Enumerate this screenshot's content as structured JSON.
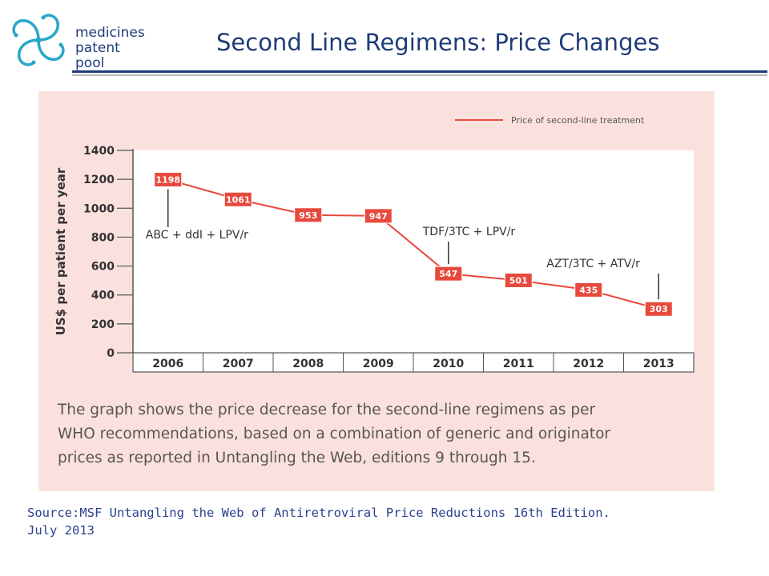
{
  "logo": {
    "lines": [
      "medicines",
      "patent",
      "pool"
    ],
    "colors": {
      "teal": "#29a6c9",
      "navy": "#1d3c78"
    },
    "icon": "pinwheel-logo-icon"
  },
  "page": {
    "title": "Second Line Regimens: Price Changes",
    "source_lines": [
      "Source:MSF Untangling the Web of Antiretroviral Price Reductions 16th Edition.",
      "July 2013"
    ],
    "colors": {
      "title": "#1d3c78",
      "panel": "#fbe1de",
      "source": "#2b3f8f"
    }
  },
  "chart_data": {
    "type": "line",
    "x": [
      "2006",
      "2007",
      "2008",
      "2009",
      "2010",
      "2011",
      "2012",
      "2013"
    ],
    "series": [
      {
        "name": "Price of second-line treatment",
        "values": [
          1198,
          1061,
          953,
          947,
          547,
          501,
          435,
          303
        ],
        "color": "#e8493d"
      }
    ],
    "ylabel": "US$ per patient per year",
    "xlabel": "",
    "ylim": [
      0,
      1400
    ],
    "yticks": [
      0,
      200,
      400,
      600,
      800,
      1000,
      1200,
      1400
    ],
    "legend_position": "top-right",
    "grid": false,
    "annotations": [
      {
        "text": "ABC + ddI + LPV/r",
        "x": "2006",
        "value": 1198
      },
      {
        "text": "TDF/3TC + LPV/r",
        "x": "2010",
        "value": 547
      },
      {
        "text": "AZT/3TC + ATV/r",
        "x": "2013",
        "value": 303
      }
    ],
    "caption_lines": [
      "The graph shows the price decrease for the second-line regimens as per",
      "WHO recommendations, based on a combination of generic and originator",
      "prices as reported in Untangling the Web, editions 9 through 15."
    ]
  }
}
